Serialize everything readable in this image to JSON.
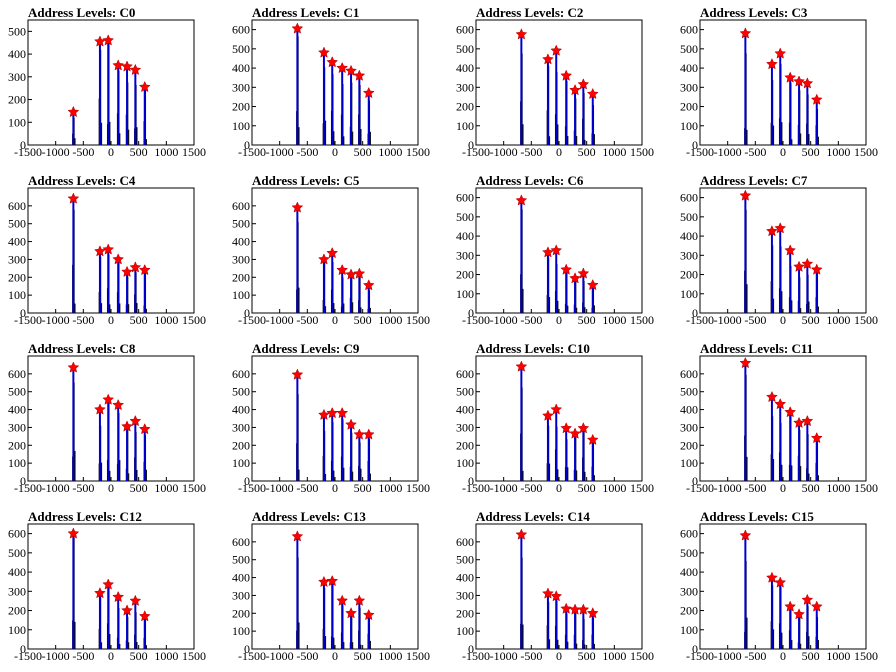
{
  "figure": {
    "x_ticks": [
      "-1500",
      "-1000",
      "-500",
      "0",
      "500",
      "1000",
      "1500"
    ],
    "x_tick_values": [
      -1500,
      -1000,
      -500,
      0,
      500,
      1000,
      1500
    ],
    "xlim": [
      -1500,
      1500
    ],
    "bar_color": "#0000cc",
    "marker_color": "#ff0000"
  },
  "chart_data": [
    {
      "type": "bar",
      "title": "Address Levels: C0",
      "xlabel": "",
      "ylabel": "",
      "xlim": [
        -1500,
        1500
      ],
      "ylim": [
        0,
        550
      ],
      "yticks": [
        0,
        100,
        200,
        300,
        400,
        500
      ],
      "peaks": [
        {
          "x": -680,
          "y": 145
        },
        {
          "x": -200,
          "y": 455
        },
        {
          "x": -50,
          "y": 460
        },
        {
          "x": 130,
          "y": 350
        },
        {
          "x": 290,
          "y": 345
        },
        {
          "x": 440,
          "y": 330
        },
        {
          "x": 610,
          "y": 255
        }
      ]
    },
    {
      "type": "bar",
      "title": "Address Levels: C1",
      "xlabel": "",
      "ylabel": "",
      "xlim": [
        -1500,
        1500
      ],
      "ylim": [
        0,
        650
      ],
      "yticks": [
        0,
        100,
        200,
        300,
        400,
        500,
        600
      ],
      "peaks": [
        {
          "x": -680,
          "y": 605
        },
        {
          "x": -200,
          "y": 480
        },
        {
          "x": -50,
          "y": 430
        },
        {
          "x": 130,
          "y": 400
        },
        {
          "x": 290,
          "y": 385
        },
        {
          "x": 440,
          "y": 360
        },
        {
          "x": 610,
          "y": 270
        }
      ]
    },
    {
      "type": "bar",
      "title": "Address Levels: C2",
      "xlabel": "",
      "ylabel": "",
      "xlim": [
        -1500,
        1500
      ],
      "ylim": [
        0,
        650
      ],
      "yticks": [
        0,
        100,
        200,
        300,
        400,
        500,
        600
      ],
      "peaks": [
        {
          "x": -680,
          "y": 575
        },
        {
          "x": -200,
          "y": 445
        },
        {
          "x": -50,
          "y": 490
        },
        {
          "x": 130,
          "y": 360
        },
        {
          "x": 290,
          "y": 285
        },
        {
          "x": 440,
          "y": 315
        },
        {
          "x": 610,
          "y": 265
        }
      ]
    },
    {
      "type": "bar",
      "title": "Address Levels: C3",
      "xlabel": "",
      "ylabel": "",
      "xlim": [
        -1500,
        1500
      ],
      "ylim": [
        0,
        650
      ],
      "yticks": [
        0,
        100,
        200,
        300,
        400,
        500,
        600
      ],
      "peaks": [
        {
          "x": -680,
          "y": 580
        },
        {
          "x": -200,
          "y": 420
        },
        {
          "x": -50,
          "y": 475
        },
        {
          "x": 130,
          "y": 350
        },
        {
          "x": 290,
          "y": 330
        },
        {
          "x": 440,
          "y": 320
        },
        {
          "x": 610,
          "y": 235
        }
      ]
    },
    {
      "type": "bar",
      "title": "Address Levels: C4",
      "xlabel": "",
      "ylabel": "",
      "xlim": [
        -1500,
        1500
      ],
      "ylim": [
        0,
        700
      ],
      "yticks": [
        0,
        100,
        200,
        300,
        400,
        500,
        600
      ],
      "peaks": [
        {
          "x": -680,
          "y": 640
        },
        {
          "x": -200,
          "y": 345
        },
        {
          "x": -50,
          "y": 355
        },
        {
          "x": 130,
          "y": 300
        },
        {
          "x": 290,
          "y": 230
        },
        {
          "x": 440,
          "y": 255
        },
        {
          "x": 610,
          "y": 240
        }
      ]
    },
    {
      "type": "bar",
      "title": "Address Levels: C5",
      "xlabel": "",
      "ylabel": "",
      "xlim": [
        -1500,
        1500
      ],
      "ylim": [
        0,
        700
      ],
      "yticks": [
        0,
        100,
        200,
        300,
        400,
        500,
        600
      ],
      "peaks": [
        {
          "x": -680,
          "y": 590
        },
        {
          "x": -200,
          "y": 300
        },
        {
          "x": -50,
          "y": 335
        },
        {
          "x": 130,
          "y": 240
        },
        {
          "x": 290,
          "y": 215
        },
        {
          "x": 440,
          "y": 220
        },
        {
          "x": 610,
          "y": 155
        }
      ]
    },
    {
      "type": "bar",
      "title": "Address Levels: C6",
      "xlabel": "",
      "ylabel": "",
      "xlim": [
        -1500,
        1500
      ],
      "ylim": [
        0,
        650
      ],
      "yticks": [
        0,
        100,
        200,
        300,
        400,
        500,
        600
      ],
      "peaks": [
        {
          "x": -680,
          "y": 585
        },
        {
          "x": -200,
          "y": 315
        },
        {
          "x": -50,
          "y": 325
        },
        {
          "x": 130,
          "y": 225
        },
        {
          "x": 290,
          "y": 180
        },
        {
          "x": 440,
          "y": 205
        },
        {
          "x": 610,
          "y": 145
        }
      ]
    },
    {
      "type": "bar",
      "title": "Address Levels: C7",
      "xlabel": "",
      "ylabel": "",
      "xlim": [
        -1500,
        1500
      ],
      "ylim": [
        0,
        650
      ],
      "yticks": [
        0,
        100,
        200,
        300,
        400,
        500,
        600
      ],
      "peaks": [
        {
          "x": -680,
          "y": 610
        },
        {
          "x": -200,
          "y": 425
        },
        {
          "x": -50,
          "y": 440
        },
        {
          "x": 130,
          "y": 325
        },
        {
          "x": 290,
          "y": 240
        },
        {
          "x": 440,
          "y": 255
        },
        {
          "x": 610,
          "y": 225
        }
      ]
    },
    {
      "type": "bar",
      "title": "Address Levels: C8",
      "xlabel": "",
      "ylabel": "",
      "xlim": [
        -1500,
        1500
      ],
      "ylim": [
        0,
        700
      ],
      "yticks": [
        0,
        100,
        200,
        300,
        400,
        500,
        600
      ],
      "peaks": [
        {
          "x": -680,
          "y": 635
        },
        {
          "x": -200,
          "y": 400
        },
        {
          "x": -50,
          "y": 455
        },
        {
          "x": 130,
          "y": 425
        },
        {
          "x": 290,
          "y": 305
        },
        {
          "x": 440,
          "y": 335
        },
        {
          "x": 610,
          "y": 290
        }
      ]
    },
    {
      "type": "bar",
      "title": "Address Levels: C9",
      "xlabel": "",
      "ylabel": "",
      "xlim": [
        -1500,
        1500
      ],
      "ylim": [
        0,
        700
      ],
      "yticks": [
        0,
        100,
        200,
        300,
        400,
        500,
        600
      ],
      "peaks": [
        {
          "x": -680,
          "y": 595
        },
        {
          "x": -200,
          "y": 370
        },
        {
          "x": -50,
          "y": 380
        },
        {
          "x": 130,
          "y": 380
        },
        {
          "x": 290,
          "y": 315
        },
        {
          "x": 440,
          "y": 260
        },
        {
          "x": 610,
          "y": 260
        }
      ]
    },
    {
      "type": "bar",
      "title": "Address Levels: C10",
      "xlabel": "",
      "ylabel": "",
      "xlim": [
        -1500,
        1500
      ],
      "ylim": [
        0,
        700
      ],
      "yticks": [
        0,
        100,
        200,
        300,
        400,
        500,
        600
      ],
      "peaks": [
        {
          "x": -680,
          "y": 640
        },
        {
          "x": -200,
          "y": 365
        },
        {
          "x": -50,
          "y": 400
        },
        {
          "x": 130,
          "y": 295
        },
        {
          "x": 290,
          "y": 265
        },
        {
          "x": 440,
          "y": 295
        },
        {
          "x": 610,
          "y": 230
        }
      ]
    },
    {
      "type": "bar",
      "title": "Address Levels: C11",
      "xlabel": "",
      "ylabel": "",
      "xlim": [
        -1500,
        1500
      ],
      "ylim": [
        0,
        700
      ],
      "yticks": [
        0,
        100,
        200,
        300,
        400,
        500,
        600
      ],
      "peaks": [
        {
          "x": -680,
          "y": 660
        },
        {
          "x": -200,
          "y": 470
        },
        {
          "x": -50,
          "y": 430
        },
        {
          "x": 130,
          "y": 385
        },
        {
          "x": 290,
          "y": 325
        },
        {
          "x": 440,
          "y": 335
        },
        {
          "x": 610,
          "y": 240
        }
      ]
    },
    {
      "type": "bar",
      "title": "Address Levels: C12",
      "xlabel": "",
      "ylabel": "",
      "xlim": [
        -1500,
        1500
      ],
      "ylim": [
        0,
        650
      ],
      "yticks": [
        0,
        100,
        200,
        300,
        400,
        500,
        600
      ],
      "peaks": [
        {
          "x": -680,
          "y": 600
        },
        {
          "x": -200,
          "y": 290
        },
        {
          "x": -50,
          "y": 335
        },
        {
          "x": 130,
          "y": 270
        },
        {
          "x": 290,
          "y": 200
        },
        {
          "x": 440,
          "y": 250
        },
        {
          "x": 610,
          "y": 170
        }
      ]
    },
    {
      "type": "bar",
      "title": "Address Levels: C13",
      "xlabel": "",
      "ylabel": "",
      "xlim": [
        -1500,
        1500
      ],
      "ylim": [
        0,
        700
      ],
      "yticks": [
        0,
        100,
        200,
        300,
        400,
        500,
        600
      ],
      "peaks": [
        {
          "x": -680,
          "y": 630
        },
        {
          "x": -200,
          "y": 375
        },
        {
          "x": -50,
          "y": 380
        },
        {
          "x": 130,
          "y": 270
        },
        {
          "x": 290,
          "y": 200
        },
        {
          "x": 440,
          "y": 270
        },
        {
          "x": 610,
          "y": 190
        }
      ]
    },
    {
      "type": "bar",
      "title": "Address Levels: C14",
      "xlabel": "",
      "ylabel": "",
      "xlim": [
        -1500,
        1500
      ],
      "ylim": [
        0,
        700
      ],
      "yticks": [
        0,
        100,
        200,
        300,
        400,
        500,
        600
      ],
      "peaks": [
        {
          "x": -680,
          "y": 640
        },
        {
          "x": -200,
          "y": 310
        },
        {
          "x": -50,
          "y": 295
        },
        {
          "x": 130,
          "y": 225
        },
        {
          "x": 290,
          "y": 220
        },
        {
          "x": 440,
          "y": 220
        },
        {
          "x": 610,
          "y": 200
        }
      ]
    },
    {
      "type": "bar",
      "title": "Address Levels: C15",
      "xlabel": "",
      "ylabel": "",
      "xlim": [
        -1500,
        1500
      ],
      "ylim": [
        0,
        650
      ],
      "yticks": [
        0,
        100,
        200,
        300,
        400,
        500,
        600
      ],
      "peaks": [
        {
          "x": -680,
          "y": 590
        },
        {
          "x": -200,
          "y": 370
        },
        {
          "x": -50,
          "y": 345
        },
        {
          "x": 130,
          "y": 220
        },
        {
          "x": 290,
          "y": 180
        },
        {
          "x": 440,
          "y": 255
        },
        {
          "x": 610,
          "y": 220
        }
      ]
    }
  ]
}
